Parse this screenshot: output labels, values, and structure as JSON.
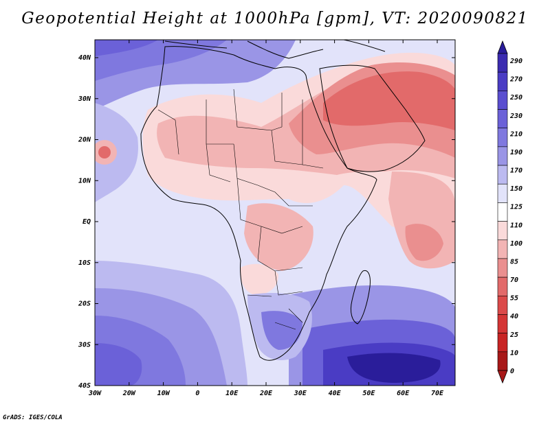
{
  "title": "Geopotential Height at 1000hPa [gpm], VT: 2020090821",
  "credit": "GrADS: IGES/COLA",
  "map": {
    "lat_labels": [
      "40N",
      "30N",
      "20N",
      "10N",
      "EQ",
      "10S",
      "20S",
      "30S",
      "40S"
    ],
    "lon_labels": [
      "30W",
      "20W",
      "10W",
      "0",
      "10E",
      "20E",
      "30E",
      "40E",
      "50E",
      "60E",
      "70E"
    ]
  },
  "colorbar": {
    "levels": [
      "290",
      "270",
      "250",
      "230",
      "210",
      "190",
      "170",
      "150",
      "125",
      "110",
      "100",
      "85",
      "70",
      "55",
      "40",
      "25",
      "10",
      "0"
    ],
    "colors": [
      "#2a1d9a",
      "#3b2bb0",
      "#4a3cc4",
      "#5a4ed0",
      "#6b61d8",
      "#7f78df",
      "#9a95e6",
      "#bcbaf0",
      "#e2e3fa",
      "#ffffff",
      "#fadada",
      "#f2b4b4",
      "#ea8f8f",
      "#e26a6a",
      "#db4a4a",
      "#d43535",
      "#c82424",
      "#a81818"
    ]
  }
}
